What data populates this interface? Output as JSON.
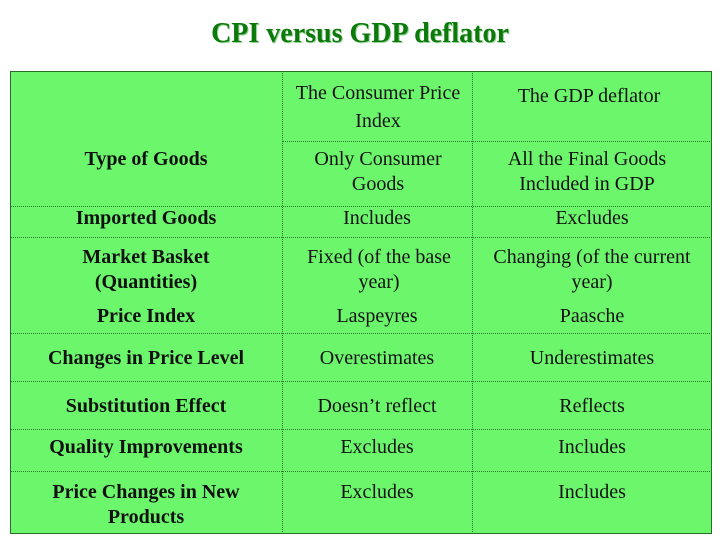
{
  "title": "CPI versus GDP deflator",
  "columns": {
    "cpi": "The Consumer Price Index",
    "gdp": "The GDP deflator"
  },
  "rows": [
    {
      "label": "Type of Goods",
      "cpi": "Only Consumer Goods",
      "gdp": "All the Final Goods Included in GDP"
    },
    {
      "label": "Imported Goods",
      "cpi": "Includes",
      "gdp": "Excludes"
    },
    {
      "label": "Market Basket (Quantities)",
      "cpi": "Fixed (of the base year)",
      "gdp": "Changing (of the current year)"
    },
    {
      "label": "Price Index",
      "cpi": "Laspeyres",
      "gdp": "Paasche"
    },
    {
      "label": "Changes in Price Level",
      "cpi": "Overestimates",
      "gdp": "Underestimates"
    },
    {
      "label": "Substitution Effect",
      "cpi": "Doesn’t reflect",
      "gdp": "Reflects"
    },
    {
      "label": "Quality Improvements",
      "cpi": "Excludes",
      "gdp": "Includes"
    },
    {
      "label": "Price Changes in New Products",
      "cpi": "Excludes",
      "gdp": "Includes"
    }
  ],
  "colors": {
    "title": "#0b7a0b",
    "table_background": "#6cf66c"
  }
}
